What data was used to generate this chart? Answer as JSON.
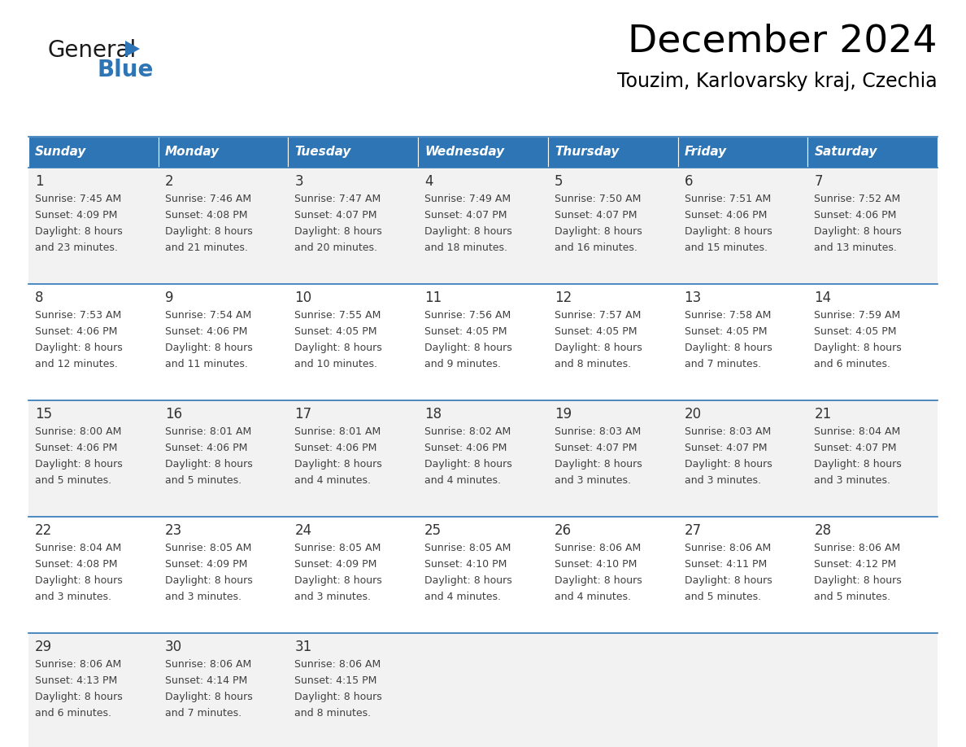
{
  "title": "December 2024",
  "subtitle": "Touzim, Karlovarsky kraj, Czechia",
  "header_bg": "#2E75B6",
  "header_text_color": "#FFFFFF",
  "row_bg_odd": "#F2F2F2",
  "row_bg_even": "#FFFFFF",
  "border_color": "#2E75B6",
  "text_color": "#404040",
  "day_num_color": "#333333",
  "days_of_week": [
    "Sunday",
    "Monday",
    "Tuesday",
    "Wednesday",
    "Thursday",
    "Friday",
    "Saturday"
  ],
  "calendar_data": [
    [
      {
        "day": 1,
        "sunrise": "7:45 AM",
        "sunset": "4:09 PM",
        "daylight_min": "and 23 minutes."
      },
      {
        "day": 2,
        "sunrise": "7:46 AM",
        "sunset": "4:08 PM",
        "daylight_min": "and 21 minutes."
      },
      {
        "day": 3,
        "sunrise": "7:47 AM",
        "sunset": "4:07 PM",
        "daylight_min": "and 20 minutes."
      },
      {
        "day": 4,
        "sunrise": "7:49 AM",
        "sunset": "4:07 PM",
        "daylight_min": "and 18 minutes."
      },
      {
        "day": 5,
        "sunrise": "7:50 AM",
        "sunset": "4:07 PM",
        "daylight_min": "and 16 minutes."
      },
      {
        "day": 6,
        "sunrise": "7:51 AM",
        "sunset": "4:06 PM",
        "daylight_min": "and 15 minutes."
      },
      {
        "day": 7,
        "sunrise": "7:52 AM",
        "sunset": "4:06 PM",
        "daylight_min": "and 13 minutes."
      }
    ],
    [
      {
        "day": 8,
        "sunrise": "7:53 AM",
        "sunset": "4:06 PM",
        "daylight_min": "and 12 minutes."
      },
      {
        "day": 9,
        "sunrise": "7:54 AM",
        "sunset": "4:06 PM",
        "daylight_min": "and 11 minutes."
      },
      {
        "day": 10,
        "sunrise": "7:55 AM",
        "sunset": "4:05 PM",
        "daylight_min": "and 10 minutes."
      },
      {
        "day": 11,
        "sunrise": "7:56 AM",
        "sunset": "4:05 PM",
        "daylight_min": "and 9 minutes."
      },
      {
        "day": 12,
        "sunrise": "7:57 AM",
        "sunset": "4:05 PM",
        "daylight_min": "and 8 minutes."
      },
      {
        "day": 13,
        "sunrise": "7:58 AM",
        "sunset": "4:05 PM",
        "daylight_min": "and 7 minutes."
      },
      {
        "day": 14,
        "sunrise": "7:59 AM",
        "sunset": "4:05 PM",
        "daylight_min": "and 6 minutes."
      }
    ],
    [
      {
        "day": 15,
        "sunrise": "8:00 AM",
        "sunset": "4:06 PM",
        "daylight_min": "and 5 minutes."
      },
      {
        "day": 16,
        "sunrise": "8:01 AM",
        "sunset": "4:06 PM",
        "daylight_min": "and 5 minutes."
      },
      {
        "day": 17,
        "sunrise": "8:01 AM",
        "sunset": "4:06 PM",
        "daylight_min": "and 4 minutes."
      },
      {
        "day": 18,
        "sunrise": "8:02 AM",
        "sunset": "4:06 PM",
        "daylight_min": "and 4 minutes."
      },
      {
        "day": 19,
        "sunrise": "8:03 AM",
        "sunset": "4:07 PM",
        "daylight_min": "and 3 minutes."
      },
      {
        "day": 20,
        "sunrise": "8:03 AM",
        "sunset": "4:07 PM",
        "daylight_min": "and 3 minutes."
      },
      {
        "day": 21,
        "sunrise": "8:04 AM",
        "sunset": "4:07 PM",
        "daylight_min": "and 3 minutes."
      }
    ],
    [
      {
        "day": 22,
        "sunrise": "8:04 AM",
        "sunset": "4:08 PM",
        "daylight_min": "and 3 minutes."
      },
      {
        "day": 23,
        "sunrise": "8:05 AM",
        "sunset": "4:09 PM",
        "daylight_min": "and 3 minutes."
      },
      {
        "day": 24,
        "sunrise": "8:05 AM",
        "sunset": "4:09 PM",
        "daylight_min": "and 3 minutes."
      },
      {
        "day": 25,
        "sunrise": "8:05 AM",
        "sunset": "4:10 PM",
        "daylight_min": "and 4 minutes."
      },
      {
        "day": 26,
        "sunrise": "8:06 AM",
        "sunset": "4:10 PM",
        "daylight_min": "and 4 minutes."
      },
      {
        "day": 27,
        "sunrise": "8:06 AM",
        "sunset": "4:11 PM",
        "daylight_min": "and 5 minutes."
      },
      {
        "day": 28,
        "sunrise": "8:06 AM",
        "sunset": "4:12 PM",
        "daylight_min": "and 5 minutes."
      }
    ],
    [
      {
        "day": 29,
        "sunrise": "8:06 AM",
        "sunset": "4:13 PM",
        "daylight_min": "and 6 minutes."
      },
      {
        "day": 30,
        "sunrise": "8:06 AM",
        "sunset": "4:14 PM",
        "daylight_min": "and 7 minutes."
      },
      {
        "day": 31,
        "sunrise": "8:06 AM",
        "sunset": "4:15 PM",
        "daylight_min": "and 8 minutes."
      },
      null,
      null,
      null,
      null
    ]
  ]
}
